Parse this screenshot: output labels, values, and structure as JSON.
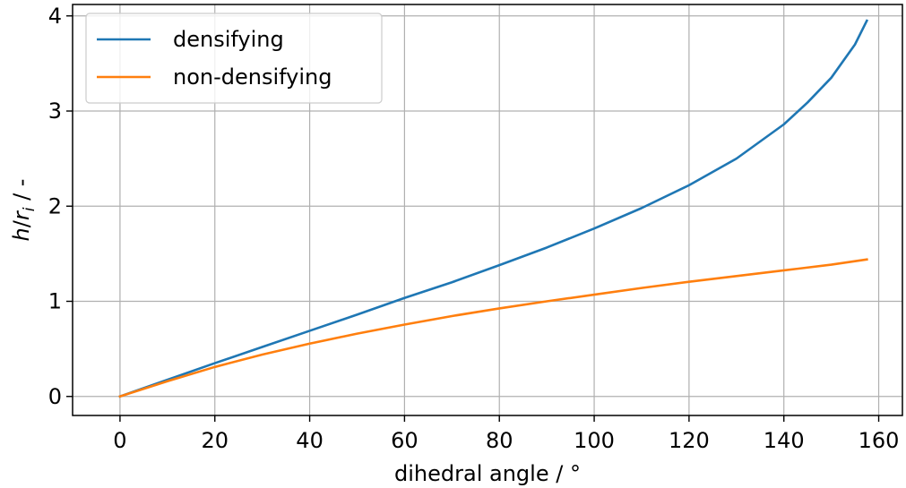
{
  "chart_data": {
    "type": "line",
    "xlabel": "dihedral angle / °",
    "ylabel": {
      "var": "h",
      "sep": "/",
      "r": "r",
      "sub": "i",
      "rest": " / -"
    },
    "xlim": [
      -10,
      165
    ],
    "ylim": [
      -0.2,
      4.12
    ],
    "xticks": [
      0,
      20,
      40,
      60,
      80,
      100,
      120,
      140,
      160
    ],
    "yticks": [
      0,
      1,
      2,
      3,
      4
    ],
    "grid": true,
    "legend_position": "top-left",
    "series": [
      {
        "name": "densifying",
        "color": "#1f77b4",
        "x": [
          0,
          10,
          20,
          30,
          40,
          50,
          60,
          70,
          80,
          90,
          100,
          110,
          120,
          130,
          140,
          145,
          150,
          155,
          157.5
        ],
        "y": [
          0,
          0.175,
          0.35,
          0.52,
          0.69,
          0.86,
          1.035,
          1.2,
          1.38,
          1.565,
          1.765,
          1.98,
          2.22,
          2.5,
          2.86,
          3.09,
          3.35,
          3.7,
          3.95
        ]
      },
      {
        "name": "non-densifying",
        "color": "#ff7f0e",
        "x": [
          0,
          10,
          20,
          30,
          40,
          50,
          60,
          70,
          80,
          90,
          100,
          110,
          120,
          130,
          140,
          150,
          157.5
        ],
        "y": [
          0,
          0.16,
          0.31,
          0.44,
          0.555,
          0.66,
          0.755,
          0.845,
          0.925,
          1.0,
          1.07,
          1.14,
          1.205,
          1.265,
          1.325,
          1.385,
          1.44
        ]
      }
    ]
  }
}
